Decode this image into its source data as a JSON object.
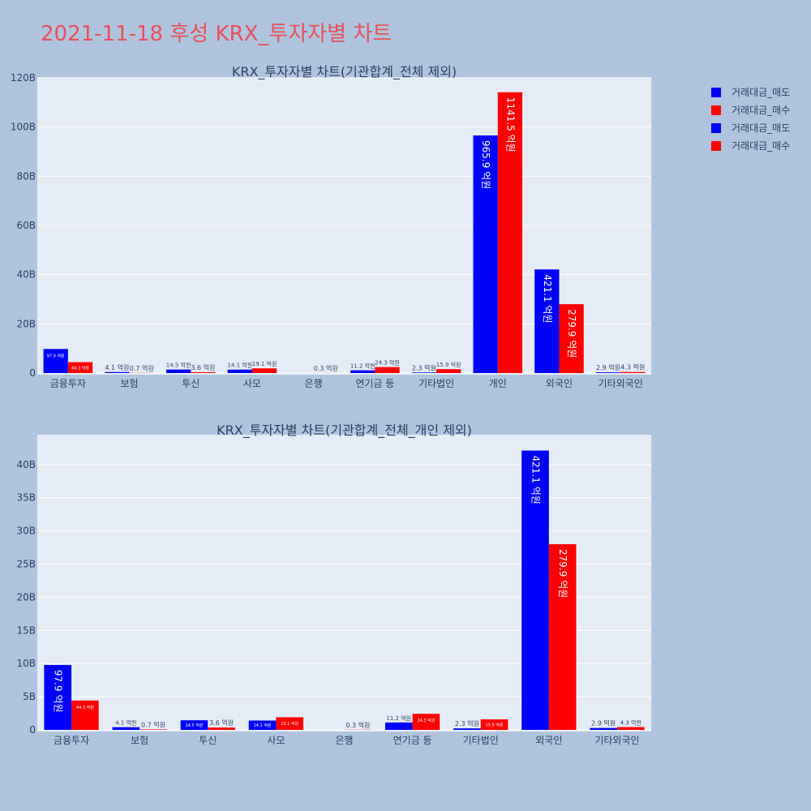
{
  "page_title": "2021-11-18 후성 KRX_투자자별 차트",
  "legend": [
    {
      "label": "거래대금_매도",
      "color": "#0000ff"
    },
    {
      "label": "거래대금_매수",
      "color": "#ff0000"
    },
    {
      "label": "거래대금_매도",
      "color": "#0000ff"
    },
    {
      "label": "거래대금_매수",
      "color": "#ff0000"
    }
  ],
  "colors": {
    "sell": "#0000ff",
    "buy": "#ff0000",
    "plot_bg": "#e5ecf6",
    "page_bg": "#b0c4de",
    "title": "#e8505b"
  },
  "chart_data": [
    {
      "type": "bar",
      "title": "KRX_투자자별 차트(기관합계_전체 제외)",
      "categories": [
        "금융투자",
        "보험",
        "투신",
        "사모",
        "은행",
        "연기금 등",
        "기타법인",
        "개인",
        "외국인",
        "기타외국인"
      ],
      "ylim": [
        0,
        120
      ],
      "yticks": [
        0,
        20,
        40,
        60,
        80,
        100,
        120
      ],
      "ytick_labels": [
        "0",
        "20B",
        "40B",
        "60B",
        "80B",
        "100B",
        "120B"
      ],
      "series": [
        {
          "name": "거래대금_매도",
          "color": "#0000ff",
          "values": [
            9.79,
            0.41,
            1.45,
            1.41,
            0,
            1.12,
            0.23,
            96.59,
            42.11,
            0.29
          ],
          "labels": [
            "97.9 억원",
            "4.1 억원",
            "14.5 억원",
            "14.1 억원",
            "",
            "11.2 억원",
            "2.3 억원",
            "965.9 억원",
            "421.1 억원",
            "2.9 억원"
          ]
        },
        {
          "name": "거래대금_매수",
          "color": "#ff0000",
          "values": [
            4.43,
            0.07,
            0.36,
            1.91,
            0.03,
            2.43,
            1.59,
            114.15,
            27.99,
            0.43
          ],
          "labels": [
            "44.3 억원",
            "0.7 억원",
            "3.6 억원",
            "19.1 억원",
            "0.3 억원",
            "24.3 억원",
            "15.9 억원",
            "1141.5 억원",
            "279.9 억원",
            "4.3 억원"
          ]
        }
      ]
    },
    {
      "type": "bar",
      "title": "KRX_투자자별 차트(기관합계_전체_개인 제외)",
      "categories": [
        "금융투자",
        "보험",
        "투신",
        "사모",
        "은행",
        "연기금 등",
        "기타법인",
        "외국인",
        "기타외국인"
      ],
      "ylim": [
        0,
        44.5
      ],
      "yticks": [
        0,
        5,
        10,
        15,
        20,
        25,
        30,
        35,
        40
      ],
      "ytick_labels": [
        "0",
        "5B",
        "10B",
        "15B",
        "20B",
        "25B",
        "30B",
        "35B",
        "40B"
      ],
      "series": [
        {
          "name": "거래대금_매도",
          "color": "#0000ff",
          "values": [
            9.79,
            0.41,
            1.45,
            1.41,
            0,
            1.12,
            0.23,
            42.11,
            0.29
          ],
          "labels": [
            "97.9 억원",
            "4.1 억원",
            "14.5 억원",
            "14.1 억원",
            "",
            "11.2 억원",
            "2.3 억원",
            "421.1 억원",
            "2.9 억원"
          ]
        },
        {
          "name": "거래대금_매수",
          "color": "#ff0000",
          "values": [
            4.43,
            0.07,
            0.36,
            1.91,
            0.03,
            2.43,
            1.59,
            27.99,
            0.43
          ],
          "labels": [
            "44.3 억원",
            "0.7 억원",
            "3.6 억원",
            "19.1 억원",
            "0.3 억원",
            "24.3 억원",
            "15.9 억원",
            "279.9 억원",
            "4.3 억원"
          ]
        }
      ]
    }
  ]
}
